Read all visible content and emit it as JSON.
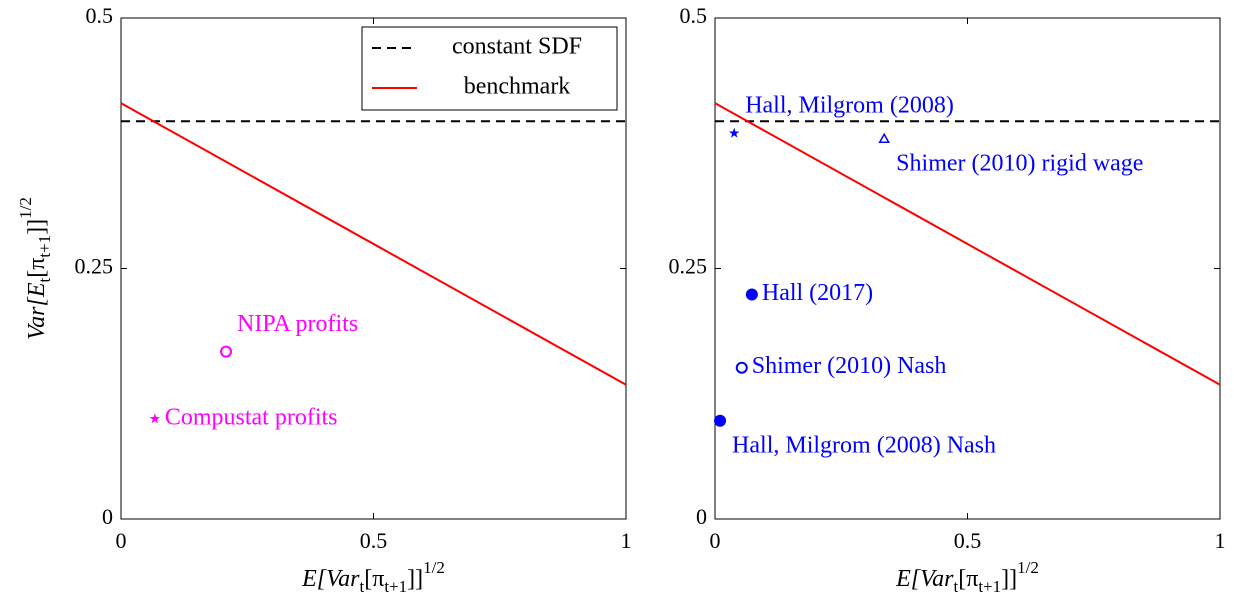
{
  "chart_data": [
    {
      "type": "scatter",
      "x_label": [
        "E[Var",
        "t",
        "[π",
        "t+1",
        "]]",
        "1/2"
      ],
      "y_label": [
        "Var[E",
        "t",
        "[π",
        "t+1",
        "]]",
        "1/2"
      ],
      "xlim": [
        0,
        1
      ],
      "ylim": [
        0,
        0.5
      ],
      "xticks": [
        0,
        0.5,
        1
      ],
      "yticks": [
        0,
        0.25,
        0.5
      ],
      "legend": "upper-right",
      "series": [
        {
          "name": "constant SDF",
          "color": "#000000",
          "style": "dashed",
          "x": [
            0,
            1
          ],
          "values": [
            0.397,
            0.397
          ]
        },
        {
          "name": "benchmark",
          "color": "#ff0000",
          "style": "solid",
          "x": [
            0,
            1
          ],
          "values": [
            0.415,
            0.134
          ]
        }
      ],
      "points": [
        {
          "label": "NIPA profits",
          "x": 0.208,
          "y": 0.167,
          "marker": "circle-open",
          "color": "#ff00ff",
          "label_position": "upper-right"
        },
        {
          "label": "Compustat profits",
          "x": 0.067,
          "y": 0.1,
          "marker": "star",
          "color": "#ff00ff",
          "label_position": "right"
        }
      ]
    },
    {
      "type": "scatter",
      "x_label": [
        "E[Var",
        "t",
        "[π",
        "t+1",
        "]]",
        "1/2"
      ],
      "xlim": [
        0,
        1
      ],
      "ylim": [
        0,
        0.5
      ],
      "xticks": [
        0,
        0.5,
        1
      ],
      "yticks": [
        0,
        0.25,
        0.5
      ],
      "series": [
        {
          "color": "#000000",
          "style": "dashed",
          "x": [
            0,
            1
          ],
          "values": [
            0.397,
            0.397
          ]
        },
        {
          "color": "#ff0000",
          "style": "solid",
          "x": [
            0,
            1
          ],
          "values": [
            0.415,
            0.134
          ]
        }
      ],
      "points": [
        {
          "label": "Hall, Milgrom (2008)",
          "x": 0.038,
          "y": 0.385,
          "marker": "star",
          "color": "#0000ff",
          "label_position": "upper-right"
        },
        {
          "label": "Shimer (2010) rigid wage",
          "x": 0.335,
          "y": 0.379,
          "marker": "triangle-open",
          "color": "#0000ff",
          "label_position": "lower-right"
        },
        {
          "label": "Hall (2017)",
          "x": 0.073,
          "y": 0.224,
          "marker": "circle",
          "color": "#0000ff",
          "label_position": "right"
        },
        {
          "label": "Shimer (2010) Nash",
          "x": 0.053,
          "y": 0.151,
          "marker": "circle-open",
          "color": "#0000ff",
          "label_position": "right"
        },
        {
          "label": "Hall, Milgrom (2008) Nash",
          "x": 0.01,
          "y": 0.098,
          "marker": "circle",
          "color": "#0000ff",
          "label_position": "lower-right"
        }
      ]
    }
  ]
}
